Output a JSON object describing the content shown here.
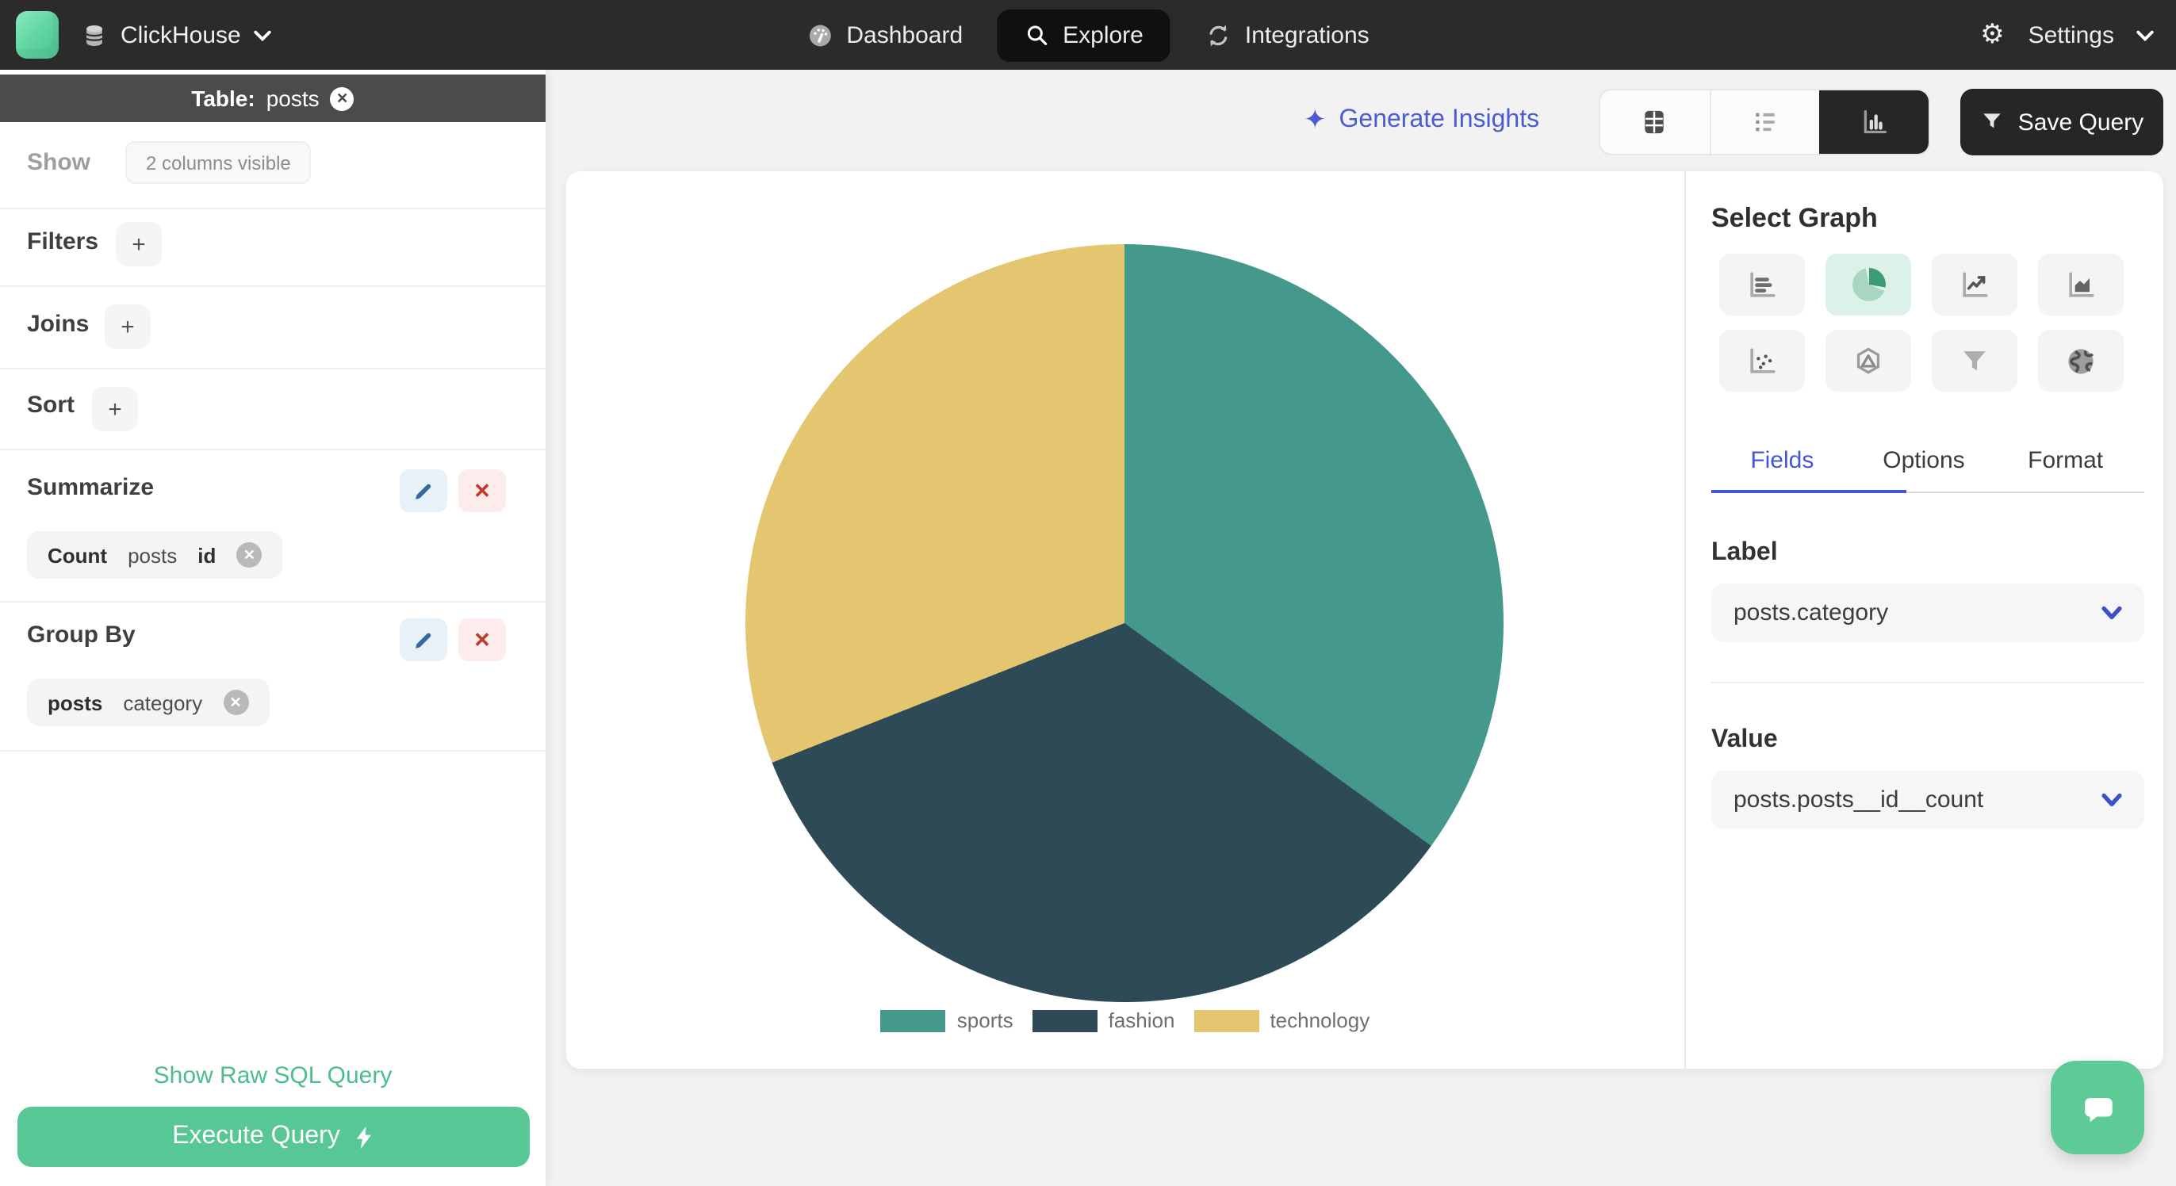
{
  "navbar": {
    "brand": "ClickHouse",
    "brand_icon": "database-icon",
    "nav": [
      {
        "label": "Dashboard",
        "icon": "gauge-icon",
        "active": false
      },
      {
        "label": "Explore",
        "icon": "search-icon",
        "active": true
      },
      {
        "label": "Integrations",
        "icon": "sync-icon",
        "active": false
      }
    ],
    "settings_label": "Settings",
    "settings_icon": "gear-icon"
  },
  "sidebar": {
    "table_label": "Table:",
    "table_name": "posts",
    "show_label": "Show",
    "show_value": "2 columns visible",
    "add_label": "+",
    "sections": [
      {
        "label": "Filters"
      },
      {
        "label": "Joins"
      },
      {
        "label": "Sort"
      }
    ],
    "summarize": {
      "title": "Summarize",
      "pill": [
        "Count",
        "posts",
        "id"
      ]
    },
    "group_by": {
      "title": "Group By",
      "pill": [
        "posts",
        "category"
      ]
    },
    "raw_sql_label": "Show Raw SQL Query",
    "execute_label": "Execute Query"
  },
  "toolbar": {
    "generate_insights": "Generate Insights",
    "view_toggles": [
      "table-view",
      "list-view",
      "chart-view"
    ],
    "active_view": "chart-view",
    "save_query": "Save Query"
  },
  "panel": {
    "title": "Select Graph",
    "graph_options": [
      "bar-chart",
      "pie-chart",
      "line-chart",
      "area-chart",
      "scatter-plot",
      "radar-chart",
      "funnel-chart",
      "map-chart"
    ],
    "active_graph": "pie-chart",
    "tabs": [
      "Fields",
      "Options",
      "Format"
    ],
    "active_tab": "Fields",
    "label_section": {
      "title": "Label",
      "value": "posts.category"
    },
    "value_section": {
      "title": "Value",
      "value": "posts.posts__id__count"
    }
  },
  "chart_data": {
    "type": "pie",
    "categories": [
      "sports",
      "fashion",
      "technology"
    ],
    "values": [
      35,
      34,
      31
    ],
    "unit": "percent",
    "colors": [
      "#44998c",
      "#2d4a56",
      "#e4c671"
    ],
    "legend_position": "bottom"
  },
  "theme": {
    "accent_green": "#57c795",
    "accent_blue": "#4c5bd0",
    "navbar_bg": "#2b2b2b",
    "sidebar_header_bg": "#4b4b4b",
    "main_bg": "#f1f2f1"
  }
}
